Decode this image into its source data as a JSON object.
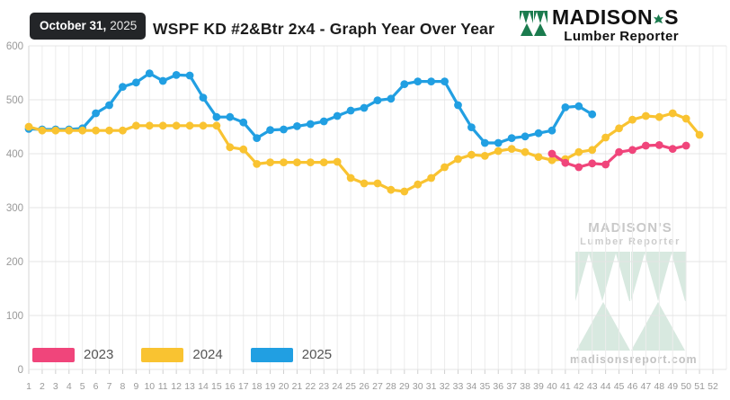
{
  "header": {
    "date_badge": {
      "date": "October 31,",
      "year": "2025"
    },
    "title": "WSPF KD #2&Btr 2x4 - Graph Year Over Year",
    "brand": {
      "name_left": "MADISON",
      "name_right": "S",
      "tagline": "Lumber Reporter"
    }
  },
  "watermark": {
    "brand": "MADISON'S",
    "tagline": "Lumber Reporter",
    "url": "madisonsreport.com"
  },
  "chart_data": {
    "type": "line",
    "title": "WSPF KD #2&Btr 2x4 - Graph Year Over Year",
    "ylim": [
      0,
      600
    ],
    "y_ticks": [
      600,
      500,
      400,
      300,
      200,
      100,
      0
    ],
    "x_ticks": [
      1,
      2,
      3,
      4,
      5,
      6,
      7,
      8,
      9,
      10,
      11,
      12,
      13,
      14,
      15,
      16,
      17,
      18,
      19,
      20,
      21,
      22,
      23,
      24,
      25,
      26,
      27,
      28,
      29,
      30,
      31,
      32,
      33,
      34,
      35,
      36,
      37,
      38,
      39,
      40,
      41,
      42,
      43,
      44,
      45,
      46,
      47,
      48,
      49,
      50,
      51,
      52
    ],
    "grid": true,
    "legend_position": "bottom-left",
    "axis_text_color": "#999999",
    "grid_color": "#ececec",
    "series": [
      {
        "name": "2023",
        "color": "#f0457b",
        "start_week": 40,
        "values": [
          400,
          383,
          375,
          382,
          380,
          403,
          407,
          415,
          416,
          409,
          415
        ]
      },
      {
        "name": "2024",
        "color": "#f9c331",
        "start_week": 1,
        "values": [
          450,
          443,
          443,
          443,
          443,
          443,
          443,
          443,
          452,
          452,
          452,
          452,
          452,
          452,
          452,
          412,
          408,
          381,
          384,
          384,
          384,
          384,
          384,
          385,
          355,
          345,
          345,
          333,
          330,
          343,
          355,
          375,
          390,
          398,
          396,
          405,
          409,
          403,
          394,
          388,
          390,
          403,
          407,
          430,
          447,
          463,
          470,
          468,
          475,
          465,
          435
        ]
      },
      {
        "name": "2025",
        "color": "#219fe2",
        "start_week": 1,
        "values": [
          446,
          445,
          445,
          445,
          447,
          475,
          490,
          524,
          532,
          549,
          535,
          546,
          545,
          504,
          468,
          468,
          458,
          429,
          444,
          445,
          451,
          455,
          460,
          470,
          480,
          485,
          499,
          502,
          529,
          534,
          534,
          534,
          490,
          449,
          420,
          420,
          429,
          432,
          438,
          443,
          486,
          488,
          473
        ]
      }
    ]
  }
}
